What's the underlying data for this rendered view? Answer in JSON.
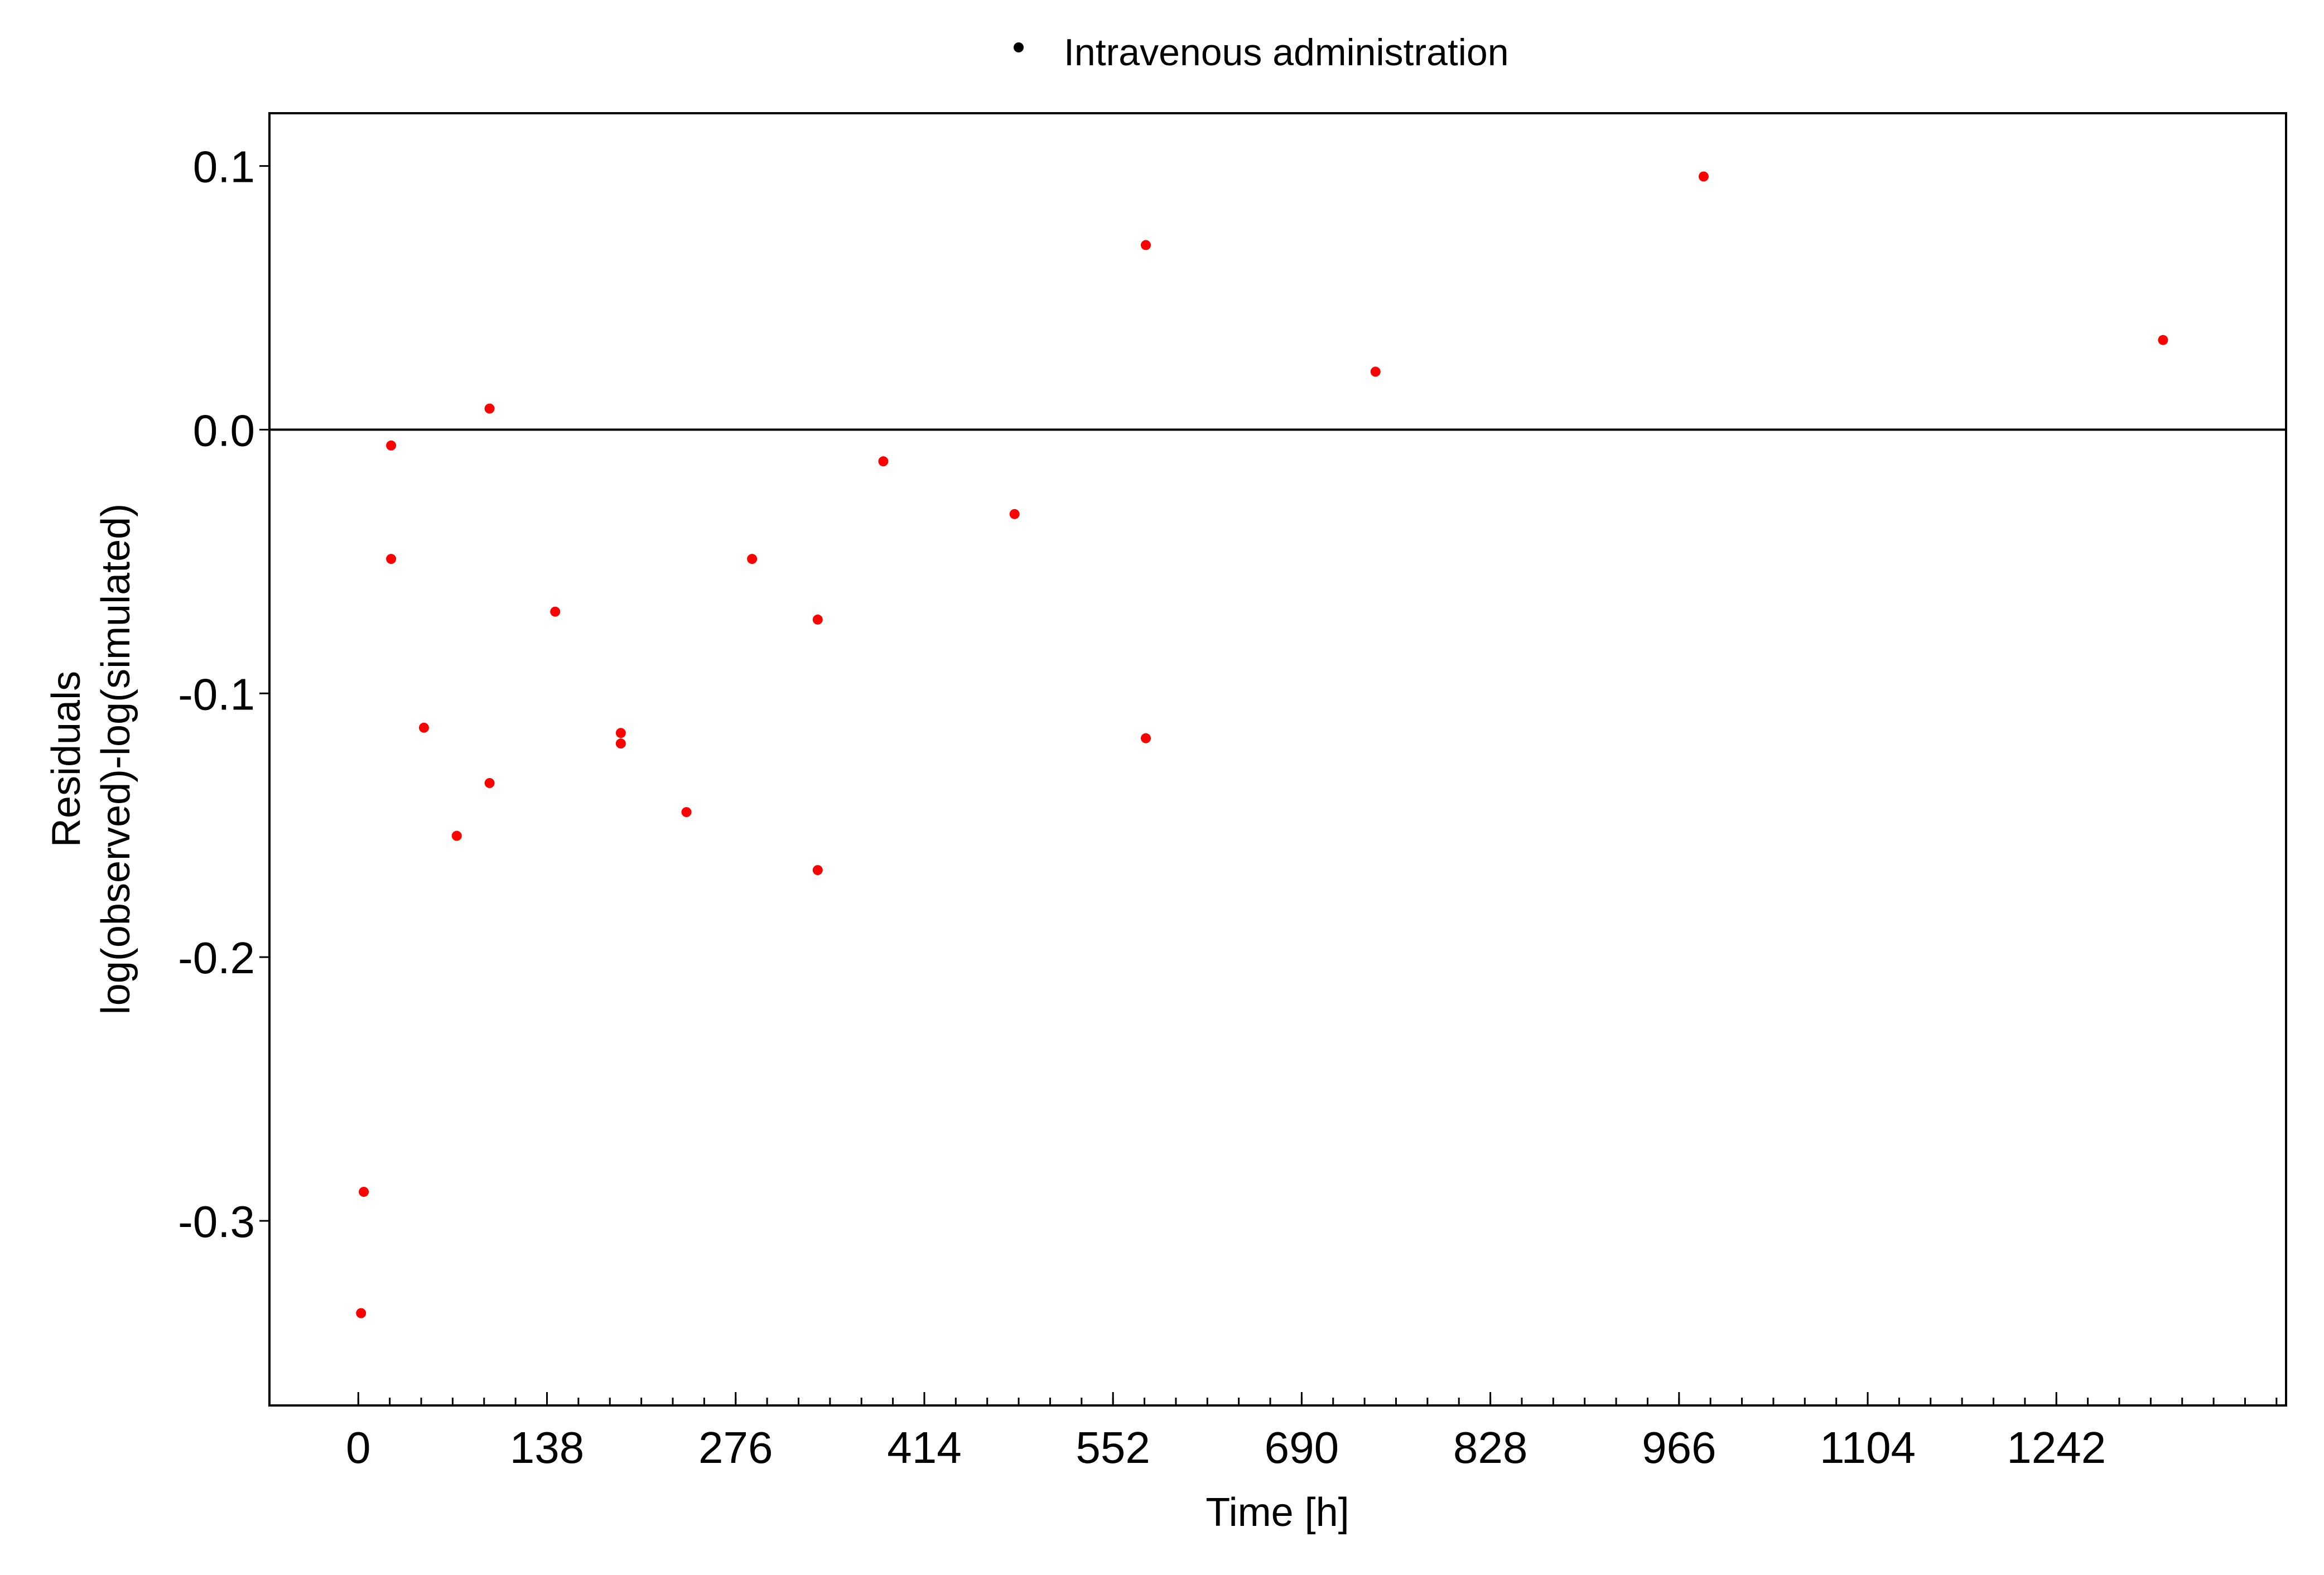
{
  "chart_data": {
    "type": "scatter",
    "title": "",
    "xlabel": "Time [h]",
    "ylabel_lines": [
      "Residuals",
      "log(observed)-log(simulated)"
    ],
    "xlim": [
      -65,
      1410
    ],
    "ylim": [
      -0.37,
      0.12
    ],
    "x_ticks": [
      0,
      138,
      276,
      414,
      552,
      690,
      828,
      966,
      1104,
      1242
    ],
    "x_tick_labels": [
      "0",
      "138",
      "276",
      "414",
      "552",
      "690",
      "828",
      "966",
      "1104",
      "1242"
    ],
    "x_minor_ticks": [
      0,
      23,
      46,
      69,
      92,
      115,
      138,
      161,
      184,
      207,
      230,
      253,
      276,
      299,
      322,
      345,
      368,
      391,
      414,
      437,
      460,
      483,
      506,
      529,
      552,
      575,
      598,
      621,
      644,
      667,
      690,
      713,
      736,
      759,
      782,
      805,
      828,
      851,
      874,
      897,
      920,
      943,
      966,
      989,
      1012,
      1035,
      1058,
      1081,
      1104,
      1127,
      1150,
      1173,
      1196,
      1219,
      1242,
      1265,
      1288,
      1311,
      1334,
      1357,
      1380,
      1403
    ],
    "y_ticks": [
      0.1,
      0.0,
      -0.1,
      -0.2,
      -0.3
    ],
    "y_tick_labels": [
      "0.1",
      "0.0",
      "-0.1",
      "-0.2",
      "-0.3"
    ],
    "reference_line_y": 0,
    "grid": false,
    "legend": {
      "position": "top-center",
      "label": "Intravenous administration",
      "marker_color": "#000000"
    },
    "series": [
      {
        "name": "Intravenous administration",
        "color": "#ff0000",
        "points": [
          {
            "x": 2,
            "y": -0.335
          },
          {
            "x": 4,
            "y": -0.289
          },
          {
            "x": 24,
            "y": -0.006
          },
          {
            "x": 24,
            "y": -0.049
          },
          {
            "x": 48,
            "y": -0.113
          },
          {
            "x": 72,
            "y": -0.154
          },
          {
            "x": 96,
            "y": 0.008
          },
          {
            "x": 96,
            "y": -0.134
          },
          {
            "x": 144,
            "y": -0.069
          },
          {
            "x": 192,
            "y": -0.115
          },
          {
            "x": 192,
            "y": -0.119
          },
          {
            "x": 240,
            "y": -0.145
          },
          {
            "x": 288,
            "y": -0.049
          },
          {
            "x": 336,
            "y": -0.072
          },
          {
            "x": 336,
            "y": -0.167
          },
          {
            "x": 384,
            "y": -0.012
          },
          {
            "x": 480,
            "y": -0.032
          },
          {
            "x": 576,
            "y": 0.07
          },
          {
            "x": 576,
            "y": -0.117
          },
          {
            "x": 744,
            "y": 0.022
          },
          {
            "x": 984,
            "y": 0.096
          },
          {
            "x": 1320,
            "y": 0.034
          }
        ]
      }
    ]
  }
}
